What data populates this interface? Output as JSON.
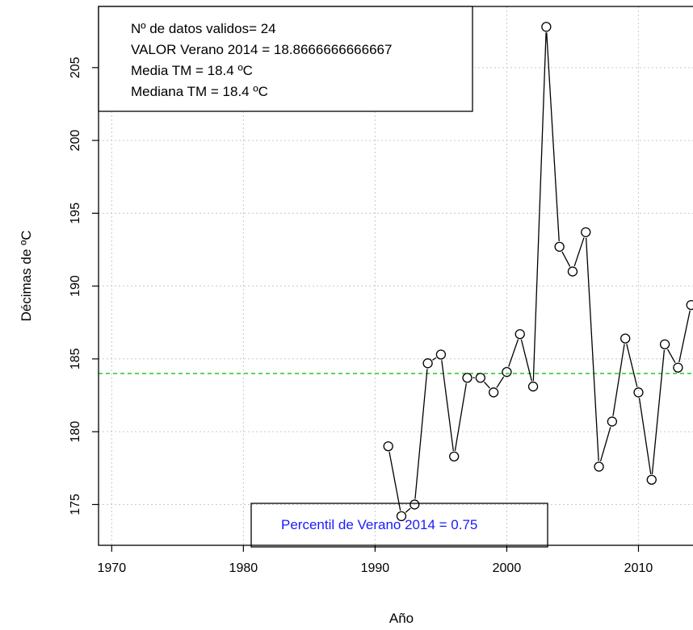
{
  "colors": {
    "series": "#000000",
    "reference_line": "#22cc22",
    "percentil_text": "#1a1aff",
    "grid": "#c8c8c8"
  },
  "chart_data": {
    "type": "line",
    "xlabel": "Año",
    "ylabel": "Décimas de  ºC",
    "xlim": [
      1969,
      2015
    ],
    "ylim": [
      172.2,
      209.2
    ],
    "x_ticks": [
      1970,
      1980,
      1990,
      2000,
      2010
    ],
    "y_ticks": [
      175,
      180,
      185,
      190,
      195,
      200,
      205
    ],
    "grid": true,
    "markers": "open-circle",
    "series": [
      {
        "x": [
          1991,
          1992,
          1993,
          1994,
          1995,
          1996,
          1997,
          1998,
          1999,
          2000,
          2001,
          2002,
          2003,
          2004,
          2005,
          2006,
          2007,
          2008,
          2009,
          2010,
          2011,
          2012,
          2013,
          2014
        ],
        "values": [
          179.0,
          174.2,
          175.0,
          184.7,
          185.3,
          178.3,
          183.7,
          183.7,
          182.7,
          184.1,
          186.7,
          183.1,
          207.8,
          192.7,
          191.0,
          193.7,
          177.6,
          180.7,
          186.4,
          182.7,
          176.7,
          186.0,
          184.4,
          188.7
        ]
      }
    ],
    "reference_line": {
      "y": 184.0,
      "style": "dashed"
    },
    "info_box": {
      "position": "top-left",
      "lines": [
        "Nº de datos validos= 24",
        "VALOR Verano  2014 = 18.8666666666667",
        "Media TM = 18.4 ºC",
        "Mediana TM = 18.4 ºC"
      ]
    },
    "percentil_box": {
      "position": "bottom-center",
      "text": "Percentil de  Verano  2014 = 0.75"
    }
  }
}
